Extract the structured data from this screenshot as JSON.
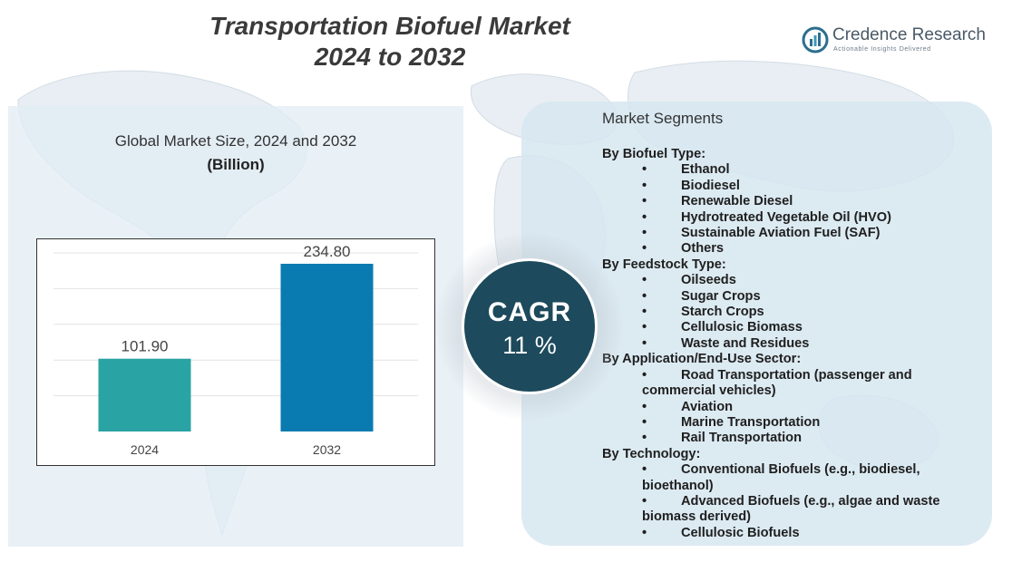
{
  "header": {
    "title_line1": "Transportation Biofuel Market",
    "title_line2": "2024 to 2032"
  },
  "brand": {
    "name": "Credence Research",
    "tagline": "Actionable Insights Delivered",
    "icon": "credence-logo-icon"
  },
  "left_panel": {
    "subtitle": "Global Market Size, 2024 and 2032",
    "unit": "(Billion)"
  },
  "chart_data": {
    "type": "bar",
    "categories": [
      "2024",
      "2032"
    ],
    "values": [
      101.9,
      234.8
    ],
    "value_labels": [
      "101.90",
      "234.80"
    ],
    "colors": [
      "#2aa3a4",
      "#0a7bb0"
    ],
    "ylim": [
      0,
      250
    ],
    "grid": true,
    "title": "",
    "xlabel": "",
    "ylabel": ""
  },
  "cagr": {
    "label": "CAGR",
    "value": "11 %"
  },
  "segments": {
    "heading": "Market Segments",
    "groups": [
      {
        "category": "By Biofuel Type:",
        "items": [
          "Ethanol",
          "Biodiesel",
          "Renewable Diesel",
          "Hydrotreated Vegetable Oil (HVO)",
          "Sustainable Aviation Fuel (SAF)",
          "Others"
        ]
      },
      {
        "category": "By Feedstock Type:",
        "items": [
          "Oilseeds",
          "Sugar Crops",
          "Starch Crops",
          "Cellulosic Biomass",
          "Waste and Residues"
        ]
      },
      {
        "category": "By Application/End-Use Sector:",
        "items": [
          "Road Transportation (passenger and commercial vehicles)",
          "Aviation",
          "Marine Transportation",
          "Rail Transportation"
        ]
      },
      {
        "category": "By Technology:",
        "items": [
          "Conventional Biofuels (e.g., biodiesel, bioethanol)",
          "Advanced Biofuels (e.g., algae and waste biomass derived)",
          "Cellulosic Biofuels"
        ]
      }
    ]
  }
}
